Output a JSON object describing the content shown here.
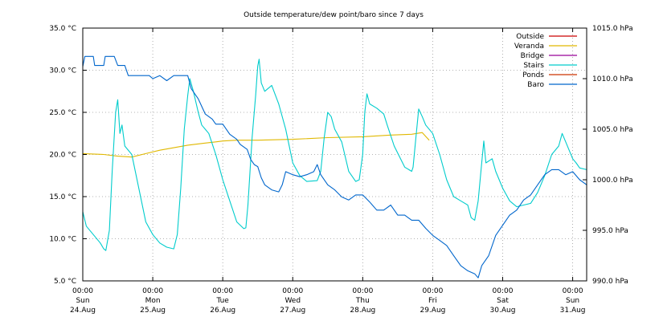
{
  "chart_data": {
    "type": "line",
    "title": "Outside temperature/dew point/baro since 7 days",
    "y_left": {
      "min": 5,
      "max": 35,
      "unit": "°C",
      "ticks": [
        {
          "value": 5,
          "label": "5.0 °C"
        },
        {
          "value": 10,
          "label": "10.0 °C"
        },
        {
          "value": 15,
          "label": "15.0 °C"
        },
        {
          "value": 20,
          "label": "20.0 °C"
        },
        {
          "value": 25,
          "label": "25.0 °C"
        },
        {
          "value": 30,
          "label": "30.0 °C"
        },
        {
          "value": 35,
          "label": "35.0 °C"
        }
      ]
    },
    "y_right": {
      "min": 990,
      "max": 1015,
      "unit": "hPa",
      "ticks": [
        {
          "value": 990,
          "label": "990.0 hPa"
        },
        {
          "value": 995,
          "label": "995.0 hPa"
        },
        {
          "value": 1000,
          "label": "1000.0 hPa"
        },
        {
          "value": 1005,
          "label": "1005.0 hPa"
        },
        {
          "value": 1010,
          "label": "1010.0 hPa"
        },
        {
          "value": 1015,
          "label": "1015.0 hPa"
        }
      ]
    },
    "x": {
      "min": 0,
      "max": 7.2,
      "unit": "days since Sun 24.Aug 00:00",
      "ticks": [
        {
          "value": 0,
          "time": "00:00",
          "day": "Sun",
          "date": "24.Aug"
        },
        {
          "value": 1,
          "time": "00:00",
          "day": "Mon",
          "date": "25.Aug"
        },
        {
          "value": 2,
          "time": "00:00",
          "day": "Tue",
          "date": "26.Aug"
        },
        {
          "value": 3,
          "time": "00:00",
          "day": "Wed",
          "date": "27.Aug"
        },
        {
          "value": 4,
          "time": "00:00",
          "day": "Thu",
          "date": "28.Aug"
        },
        {
          "value": 5,
          "time": "00:00",
          "day": "Fri",
          "date": "29.Aug"
        },
        {
          "value": 6,
          "time": "00:00",
          "day": "Sat",
          "date": "30.Aug"
        },
        {
          "value": 7,
          "time": "00:00",
          "day": "Sun",
          "date": "31.Aug"
        }
      ]
    },
    "legend_position": "top-right",
    "series": [
      {
        "name": "Outside",
        "color": "#cc0000",
        "axis": "left",
        "points": []
      },
      {
        "name": "Veranda",
        "color": "#e0b800",
        "axis": "left",
        "points": [
          [
            0,
            20.1
          ],
          [
            0.3,
            20.0
          ],
          [
            0.5,
            19.8
          ],
          [
            0.7,
            19.7
          ],
          [
            0.9,
            20.1
          ],
          [
            1.1,
            20.5
          ],
          [
            1.3,
            20.8
          ],
          [
            1.5,
            21.1
          ],
          [
            1.7,
            21.3
          ],
          [
            1.9,
            21.5
          ],
          [
            2.0,
            21.6
          ],
          [
            2.2,
            21.7
          ],
          [
            2.5,
            21.7
          ],
          [
            3.0,
            21.8
          ],
          [
            3.5,
            22.0
          ],
          [
            4.0,
            22.1
          ],
          [
            4.4,
            22.3
          ],
          [
            4.7,
            22.4
          ],
          [
            4.85,
            22.6
          ],
          [
            4.95,
            21.7
          ]
        ]
      },
      {
        "name": "Bridge",
        "color": "#990099",
        "axis": "left",
        "points": []
      },
      {
        "name": "Stairs",
        "color": "#00cccc",
        "axis": "left",
        "points": [
          [
            0,
            13.2
          ],
          [
            0.05,
            11.5
          ],
          [
            0.15,
            10.5
          ],
          [
            0.25,
            9.5
          ],
          [
            0.3,
            8.8
          ],
          [
            0.33,
            8.6
          ],
          [
            0.38,
            11.0
          ],
          [
            0.42,
            18.0
          ],
          [
            0.47,
            25.0
          ],
          [
            0.5,
            26.5
          ],
          [
            0.53,
            22.5
          ],
          [
            0.56,
            23.5
          ],
          [
            0.6,
            21.0
          ],
          [
            0.7,
            20.0
          ],
          [
            0.8,
            16.0
          ],
          [
            0.9,
            12.0
          ],
          [
            1.0,
            10.5
          ],
          [
            1.1,
            9.5
          ],
          [
            1.2,
            9.0
          ],
          [
            1.3,
            8.8
          ],
          [
            1.35,
            10.5
          ],
          [
            1.4,
            16.0
          ],
          [
            1.45,
            23.0
          ],
          [
            1.5,
            27.0
          ],
          [
            1.53,
            29.0
          ],
          [
            1.58,
            27.5
          ],
          [
            1.65,
            25.0
          ],
          [
            1.7,
            23.5
          ],
          [
            1.8,
            22.5
          ],
          [
            1.9,
            20.0
          ],
          [
            2.0,
            17.0
          ],
          [
            2.1,
            14.5
          ],
          [
            2.2,
            12.0
          ],
          [
            2.3,
            11.2
          ],
          [
            2.33,
            11.3
          ],
          [
            2.36,
            14.0
          ],
          [
            2.42,
            22.0
          ],
          [
            2.47,
            27.0
          ],
          [
            2.5,
            30.5
          ],
          [
            2.52,
            31.3
          ],
          [
            2.55,
            28.5
          ],
          [
            2.6,
            27.5
          ],
          [
            2.7,
            28.2
          ],
          [
            2.8,
            26.0
          ],
          [
            2.9,
            23.0
          ],
          [
            3.0,
            19.0
          ],
          [
            3.1,
            17.5
          ],
          [
            3.2,
            16.8
          ],
          [
            3.35,
            16.9
          ],
          [
            3.4,
            18.0
          ],
          [
            3.45,
            22.0
          ],
          [
            3.5,
            25.0
          ],
          [
            3.55,
            24.5
          ],
          [
            3.6,
            23.0
          ],
          [
            3.7,
            21.5
          ],
          [
            3.8,
            18.0
          ],
          [
            3.9,
            16.8
          ],
          [
            3.95,
            17.0
          ],
          [
            4.0,
            20.0
          ],
          [
            4.03,
            25.0
          ],
          [
            4.06,
            27.2
          ],
          [
            4.1,
            26.0
          ],
          [
            4.2,
            25.5
          ],
          [
            4.3,
            24.8
          ],
          [
            4.35,
            23.5
          ],
          [
            4.45,
            21.0
          ],
          [
            4.6,
            18.5
          ],
          [
            4.7,
            18.0
          ],
          [
            4.72,
            18.5
          ],
          [
            4.76,
            22.0
          ],
          [
            4.8,
            25.4
          ],
          [
            4.85,
            24.5
          ],
          [
            4.9,
            23.5
          ],
          [
            5.0,
            22.5
          ],
          [
            5.1,
            20.0
          ],
          [
            5.2,
            17.0
          ],
          [
            5.3,
            15.0
          ],
          [
            5.4,
            14.5
          ],
          [
            5.5,
            14.0
          ],
          [
            5.55,
            12.5
          ],
          [
            5.6,
            12.2
          ],
          [
            5.65,
            14.5
          ],
          [
            5.7,
            19.0
          ],
          [
            5.73,
            21.6
          ],
          [
            5.76,
            19.0
          ],
          [
            5.85,
            19.5
          ],
          [
            5.9,
            18.0
          ],
          [
            6.0,
            16.0
          ],
          [
            6.1,
            14.5
          ],
          [
            6.2,
            13.8
          ],
          [
            6.3,
            14.0
          ],
          [
            6.4,
            14.2
          ],
          [
            6.5,
            15.5
          ],
          [
            6.6,
            17.5
          ],
          [
            6.7,
            20.0
          ],
          [
            6.8,
            21.0
          ],
          [
            6.85,
            22.5
          ],
          [
            6.9,
            21.5
          ],
          [
            7.0,
            19.5
          ],
          [
            7.05,
            19.0
          ],
          [
            7.1,
            18.4
          ],
          [
            7.2,
            18.2
          ]
        ]
      },
      {
        "name": "Ponds",
        "color": "#cc3300",
        "axis": "left",
        "points": []
      },
      {
        "name": "Baro",
        "color": "#0066cc",
        "axis": "right",
        "points": [
          [
            0,
            1011.2
          ],
          [
            0.03,
            1012.2
          ],
          [
            0.15,
            1012.2
          ],
          [
            0.17,
            1011.3
          ],
          [
            0.3,
            1011.3
          ],
          [
            0.32,
            1012.2
          ],
          [
            0.45,
            1012.2
          ],
          [
            0.5,
            1011.3
          ],
          [
            0.6,
            1011.3
          ],
          [
            0.65,
            1010.3
          ],
          [
            0.95,
            1010.3
          ],
          [
            1.0,
            1010.0
          ],
          [
            1.1,
            1010.3
          ],
          [
            1.2,
            1009.8
          ],
          [
            1.3,
            1010.3
          ],
          [
            1.5,
            1010.3
          ],
          [
            1.55,
            1009.0
          ],
          [
            1.65,
            1008.0
          ],
          [
            1.75,
            1006.5
          ],
          [
            1.85,
            1006.0
          ],
          [
            1.9,
            1005.5
          ],
          [
            2.0,
            1005.5
          ],
          [
            2.1,
            1004.5
          ],
          [
            2.2,
            1004.0
          ],
          [
            2.25,
            1003.5
          ],
          [
            2.35,
            1003.0
          ],
          [
            2.4,
            1002.0
          ],
          [
            2.45,
            1001.5
          ],
          [
            2.5,
            1001.3
          ],
          [
            2.55,
            1000.2
          ],
          [
            2.6,
            999.5
          ],
          [
            2.7,
            999.0
          ],
          [
            2.8,
            998.8
          ],
          [
            2.85,
            999.5
          ],
          [
            2.9,
            1000.8
          ],
          [
            3.0,
            1000.5
          ],
          [
            3.1,
            1000.3
          ],
          [
            3.2,
            1000.5
          ],
          [
            3.3,
            1000.8
          ],
          [
            3.35,
            1001.5
          ],
          [
            3.4,
            1000.5
          ],
          [
            3.5,
            999.5
          ],
          [
            3.6,
            999.0
          ],
          [
            3.7,
            998.3
          ],
          [
            3.8,
            998.0
          ],
          [
            3.9,
            998.5
          ],
          [
            4.0,
            998.5
          ],
          [
            4.1,
            997.8
          ],
          [
            4.2,
            997.0
          ],
          [
            4.3,
            997.0
          ],
          [
            4.4,
            997.5
          ],
          [
            4.5,
            996.5
          ],
          [
            4.6,
            996.5
          ],
          [
            4.7,
            996.0
          ],
          [
            4.8,
            996.0
          ],
          [
            4.9,
            995.2
          ],
          [
            5.0,
            994.5
          ],
          [
            5.1,
            994.0
          ],
          [
            5.2,
            993.5
          ],
          [
            5.3,
            992.5
          ],
          [
            5.4,
            991.5
          ],
          [
            5.5,
            991.0
          ],
          [
            5.6,
            990.7
          ],
          [
            5.65,
            990.3
          ],
          [
            5.7,
            991.5
          ],
          [
            5.8,
            992.5
          ],
          [
            5.9,
            994.5
          ],
          [
            6.0,
            995.5
          ],
          [
            6.1,
            996.5
          ],
          [
            6.2,
            997.0
          ],
          [
            6.3,
            998.0
          ],
          [
            6.4,
            998.5
          ],
          [
            6.5,
            999.5
          ],
          [
            6.6,
            1000.5
          ],
          [
            6.7,
            1001.0
          ],
          [
            6.8,
            1001.0
          ],
          [
            6.9,
            1000.5
          ],
          [
            7.0,
            1000.8
          ],
          [
            7.1,
            1000.0
          ],
          [
            7.2,
            999.5
          ]
        ]
      }
    ]
  }
}
